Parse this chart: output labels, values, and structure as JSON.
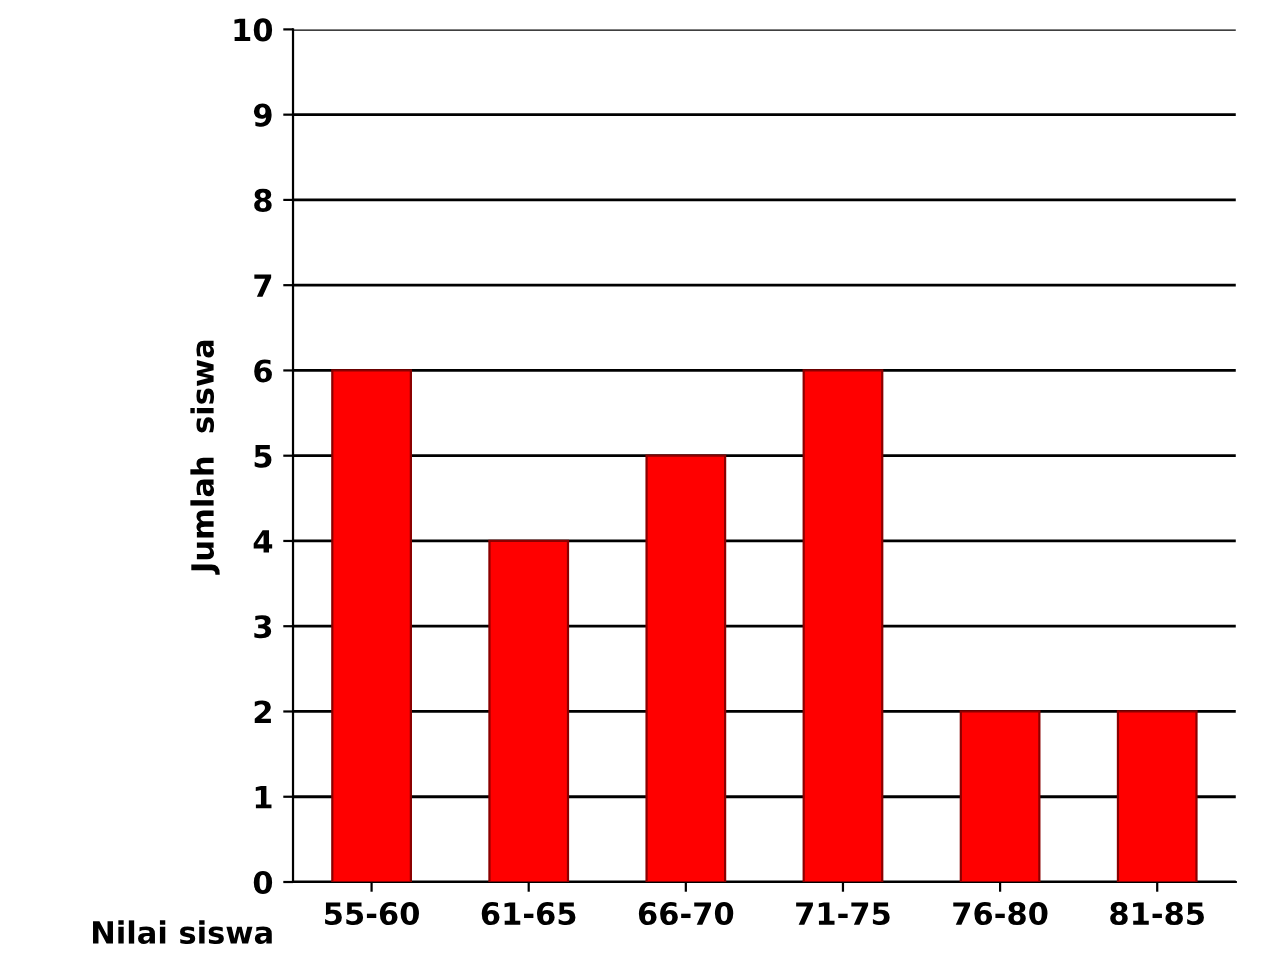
{
  "chart_data": {
    "type": "bar",
    "xlabel": "Nilai siswa",
    "ylabel": "Jumlah  siswa",
    "categories": [
      "55-60",
      "61-65",
      "66-70",
      "71-75",
      "76-80",
      "81-85"
    ],
    "values": [
      6,
      4,
      5,
      6,
      2,
      2
    ],
    "color": "#ff0000",
    "ylim": [
      0,
      10
    ],
    "yticks": [
      0,
      1,
      2,
      3,
      4,
      5,
      6,
      7,
      8,
      9,
      10
    ],
    "grid": "y",
    "legend": false
  }
}
